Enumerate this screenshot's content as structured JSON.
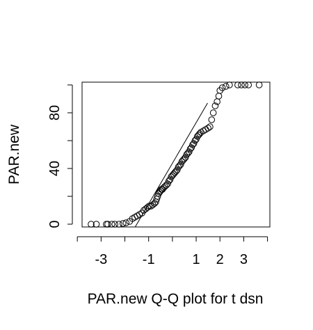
{
  "chart_data": {
    "type": "scatter",
    "title": "",
    "xlabel": "PAR.new Q-Q plot for t dsn",
    "ylabel": "PAR.new",
    "xlim": [
      -3.8,
      4.1
    ],
    "ylim": [
      -2,
      102
    ],
    "x_ticks": [
      -4,
      -3,
      -2,
      -1,
      0,
      1,
      2,
      3,
      4
    ],
    "x_tick_labels": [
      "",
      "-3",
      "",
      "-1",
      "",
      "1",
      "2",
      "3",
      ""
    ],
    "y_ticks": [
      0,
      20,
      40,
      60,
      80,
      100
    ],
    "y_tick_labels": [
      "0",
      "",
      "40",
      "",
      "80",
      ""
    ],
    "reference_line": {
      "x": [
        -1.6,
        1.48
      ],
      "y": [
        -3,
        87
      ]
    },
    "grid": false,
    "legend": "none",
    "point_style": "open-circle",
    "points": [
      {
        "x": -3.42,
        "y": 0
      },
      {
        "x": -3.2,
        "y": 0
      },
      {
        "x": -2.78,
        "y": 0
      },
      {
        "x": -2.72,
        "y": 0
      },
      {
        "x": -2.55,
        "y": 0
      },
      {
        "x": -2.42,
        "y": 0
      },
      {
        "x": -2.25,
        "y": 0
      },
      {
        "x": -2.08,
        "y": 0.5
      },
      {
        "x": -1.95,
        "y": 1
      },
      {
        "x": -1.8,
        "y": 2
      },
      {
        "x": -1.68,
        "y": 4
      },
      {
        "x": -1.58,
        "y": 5
      },
      {
        "x": -1.48,
        "y": 6
      },
      {
        "x": -1.38,
        "y": 7
      },
      {
        "x": -1.28,
        "y": 8
      },
      {
        "x": -1.2,
        "y": 10
      },
      {
        "x": -1.12,
        "y": 11
      },
      {
        "x": -1.05,
        "y": 12
      },
      {
        "x": -0.98,
        "y": 13
      },
      {
        "x": -0.9,
        "y": 13
      },
      {
        "x": -0.82,
        "y": 14
      },
      {
        "x": -0.75,
        "y": 15
      },
      {
        "x": -0.7,
        "y": 16
      },
      {
        "x": -0.66,
        "y": 18
      },
      {
        "x": -0.62,
        "y": 20
      },
      {
        "x": -0.58,
        "y": 22
      },
      {
        "x": -0.54,
        "y": 23
      },
      {
        "x": -0.5,
        "y": 24
      },
      {
        "x": -0.46,
        "y": 25
      },
      {
        "x": -0.42,
        "y": 25
      },
      {
        "x": -0.38,
        "y": 26
      },
      {
        "x": -0.32,
        "y": 27
      },
      {
        "x": -0.26,
        "y": 28
      },
      {
        "x": -0.2,
        "y": 29
      },
      {
        "x": -0.15,
        "y": 31
      },
      {
        "x": -0.1,
        "y": 32
      },
      {
        "x": -0.05,
        "y": 34
      },
      {
        "x": 0.0,
        "y": 35
      },
      {
        "x": 0.05,
        "y": 36
      },
      {
        "x": 0.1,
        "y": 37
      },
      {
        "x": 0.15,
        "y": 38
      },
      {
        "x": 0.2,
        "y": 39
      },
      {
        "x": 0.25,
        "y": 41
      },
      {
        "x": 0.3,
        "y": 42
      },
      {
        "x": 0.35,
        "y": 43
      },
      {
        "x": 0.4,
        "y": 45
      },
      {
        "x": 0.45,
        "y": 46
      },
      {
        "x": 0.5,
        "y": 47
      },
      {
        "x": 0.55,
        "y": 48
      },
      {
        "x": 0.6,
        "y": 50
      },
      {
        "x": 0.65,
        "y": 51
      },
      {
        "x": 0.7,
        "y": 52
      },
      {
        "x": 0.75,
        "y": 54
      },
      {
        "x": 0.8,
        "y": 55
      },
      {
        "x": 0.85,
        "y": 57
      },
      {
        "x": 0.9,
        "y": 58
      },
      {
        "x": 0.95,
        "y": 60
      },
      {
        "x": 1.0,
        "y": 61
      },
      {
        "x": 1.05,
        "y": 63
      },
      {
        "x": 1.1,
        "y": 64
      },
      {
        "x": 1.15,
        "y": 65
      },
      {
        "x": 1.2,
        "y": 66
      },
      {
        "x": 1.3,
        "y": 67
      },
      {
        "x": 1.4,
        "y": 68
      },
      {
        "x": 1.5,
        "y": 69
      },
      {
        "x": 1.58,
        "y": 70
      },
      {
        "x": 1.65,
        "y": 75
      },
      {
        "x": 1.72,
        "y": 80
      },
      {
        "x": 1.8,
        "y": 85
      },
      {
        "x": 1.88,
        "y": 88
      },
      {
        "x": 1.95,
        "y": 92
      },
      {
        "x": 2.0,
        "y": 96
      },
      {
        "x": 2.1,
        "y": 98
      },
      {
        "x": 2.25,
        "y": 99
      },
      {
        "x": 2.4,
        "y": 100
      },
      {
        "x": 2.75,
        "y": 100
      },
      {
        "x": 2.9,
        "y": 100
      },
      {
        "x": 3.05,
        "y": 100
      },
      {
        "x": 3.2,
        "y": 100
      },
      {
        "x": 3.65,
        "y": 100
      }
    ]
  }
}
